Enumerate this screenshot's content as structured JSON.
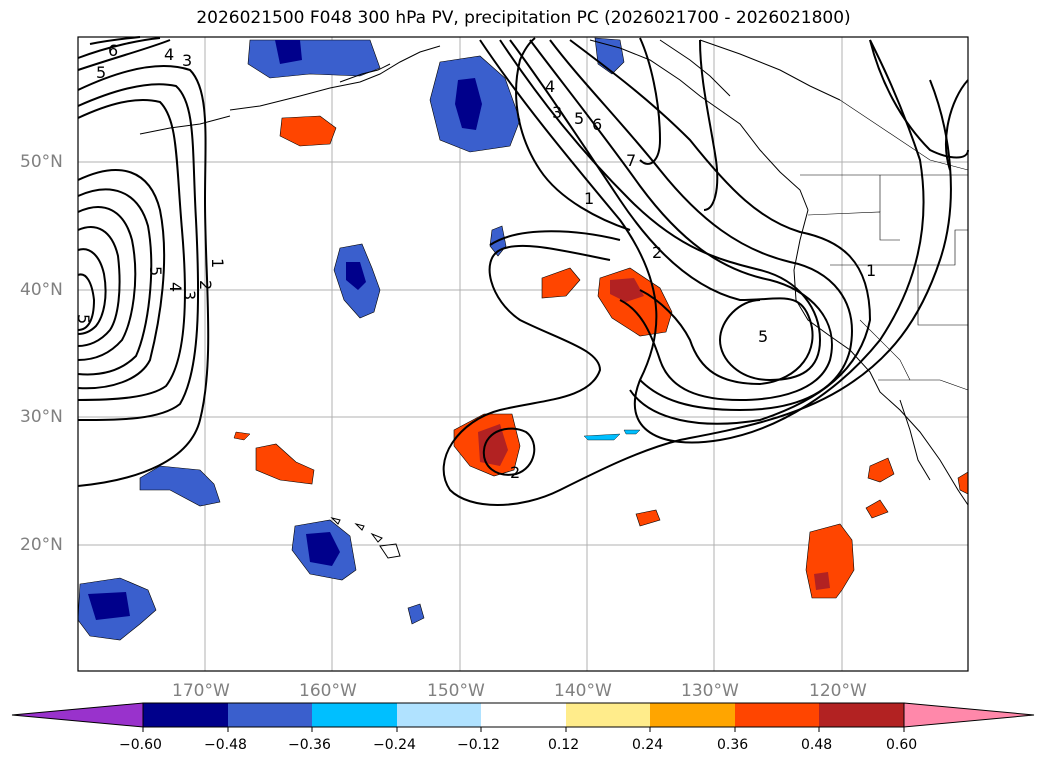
{
  "title": "2026021500 F048 300 hPa PV, precipitation PC (2026021700 - 2026021800)",
  "axes": {
    "lat_labels": [
      "50°N",
      "40°N",
      "30°N",
      "20°N"
    ],
    "lon_labels": [
      "170°W",
      "160°W",
      "150°W",
      "140°W",
      "130°W",
      "120°W"
    ]
  },
  "colorbar": {
    "tick_labels": [
      "−0.60",
      "−0.48",
      "−0.36",
      "−0.24",
      "−0.12",
      "0.12",
      "0.24",
      "0.36",
      "0.48",
      "0.60"
    ],
    "colors": [
      "#9932cc",
      "#00008b",
      "#3a5fcd",
      "#00bfff",
      "#b0e2ff",
      "#ffffff",
      "#ffec8b",
      "#ffa500",
      "#ff4500",
      "#b22222",
      "#ff88aa"
    ]
  },
  "contour_labels": {
    "nw": [
      "6",
      "5",
      "4",
      "3"
    ],
    "west": [
      "5",
      "4",
      "3",
      "2",
      "1",
      "5"
    ],
    "jet_upper": [
      "4",
      "3",
      "5",
      "6",
      "7",
      "1"
    ],
    "jet_middle": [
      "2"
    ],
    "trough": [
      "5",
      "1"
    ],
    "center": [
      "2"
    ]
  }
}
